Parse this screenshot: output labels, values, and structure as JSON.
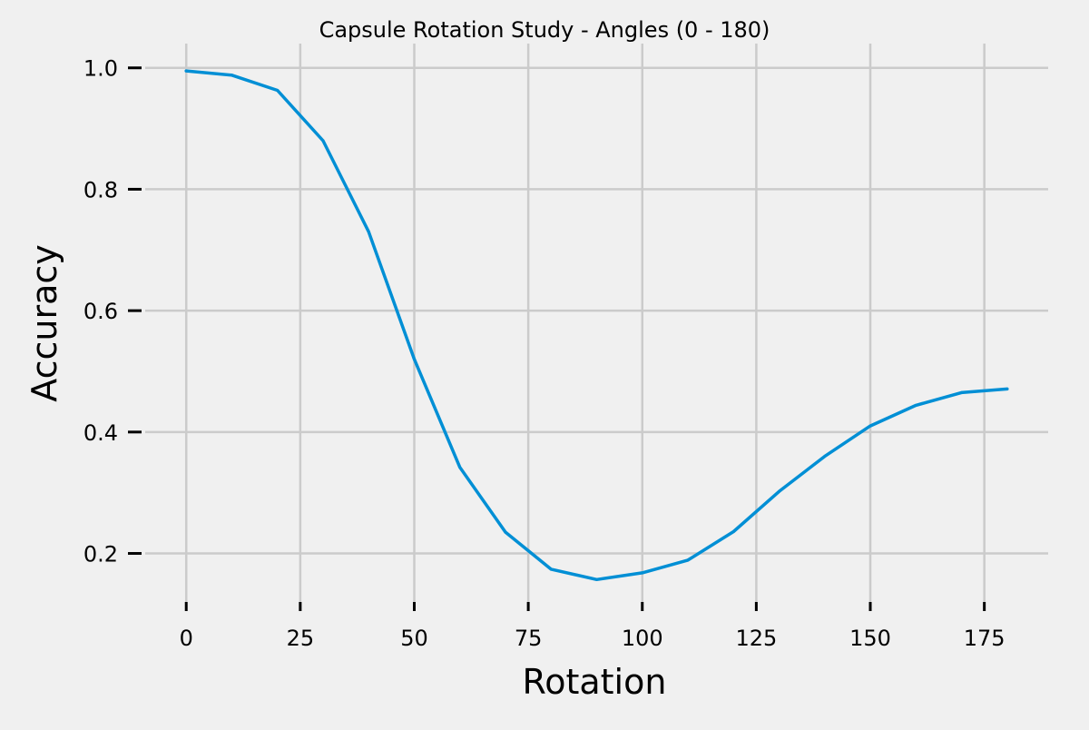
{
  "chart_data": {
    "type": "line",
    "title": "Capsule Rotation Study - Angles (0 - 180)",
    "xlabel": "Rotation",
    "ylabel": "Accuracy",
    "xlim": [
      -9,
      189
    ],
    "ylim": [
      0.12,
      1.04
    ],
    "xticks": [
      0,
      25,
      50,
      75,
      100,
      125,
      150,
      175
    ],
    "yticks": [
      0.2,
      0.4,
      0.6,
      0.8,
      1.0
    ],
    "xtick_labels": [
      "0",
      "25",
      "50",
      "75",
      "100",
      "125",
      "150",
      "175"
    ],
    "ytick_labels": [
      "0.2",
      "0.4",
      "0.6",
      "0.8",
      "1.0"
    ],
    "grid": true,
    "legend": "none",
    "background_color": "#f0f0f0",
    "grid_color": "#cbcbcb",
    "series": [
      {
        "color": "#008fd5",
        "x": [
          0,
          10,
          20,
          30,
          40,
          50,
          60,
          70,
          80,
          90,
          100,
          110,
          120,
          130,
          140,
          150,
          160,
          170,
          180
        ],
        "y": [
          0.995,
          0.988,
          0.963,
          0.88,
          0.73,
          0.52,
          0.342,
          0.235,
          0.174,
          0.157,
          0.168,
          0.189,
          0.236,
          0.302,
          0.36,
          0.41,
          0.444,
          0.465,
          0.471
        ]
      }
    ]
  }
}
